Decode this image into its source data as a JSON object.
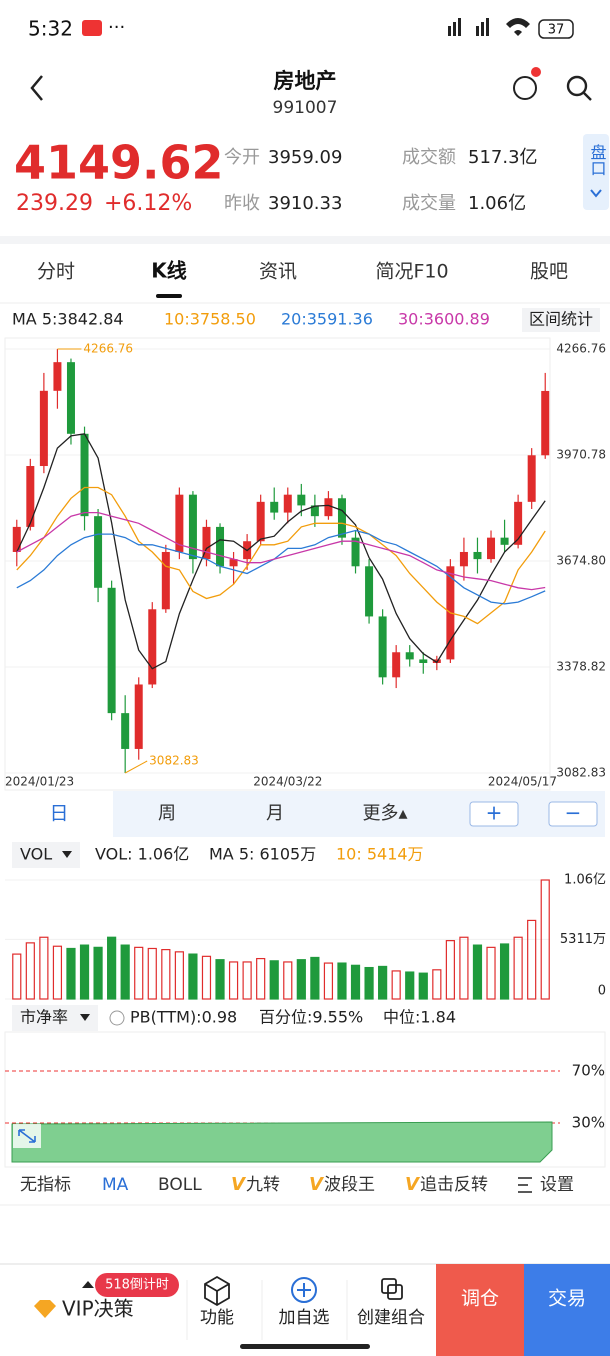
{
  "status_bar": {
    "time": "5:32",
    "battery": "37"
  },
  "header": {
    "title": "房地产",
    "code": "991007"
  },
  "quote": {
    "price": "4149.62",
    "change": "239.29",
    "change_pct": "+6.12%",
    "stats": [
      {
        "label": "今开",
        "value": "3959.09"
      },
      {
        "label": "昨收",
        "value": "3910.33"
      },
      {
        "label": "成交额",
        "value": "517.3亿"
      },
      {
        "label": "成交量",
        "value": "1.06亿"
      }
    ],
    "side_button": "盘口"
  },
  "tabs": [
    "分时",
    "K线",
    "资讯",
    "简况F10",
    "股吧"
  ],
  "ma_legend": [
    {
      "text": "MA 5:3842.84",
      "color": "#222222"
    },
    {
      "text": "10:3758.50",
      "color": "#f29d0c"
    },
    {
      "text": "20:3591.36",
      "color": "#2b7bd6"
    },
    {
      "text": "30:3600.89",
      "color": "#c838a8"
    }
  ],
  "range_button": "区间统计",
  "chart_data": [
    {
      "type": "candlestick",
      "categories": [
        "2024/01/23",
        null,
        null,
        null,
        null,
        null,
        null,
        null,
        null,
        null,
        null,
        null,
        null,
        null,
        null,
        null,
        null,
        null,
        null,
        null,
        "2024/03/22",
        null,
        null,
        null,
        null,
        null,
        null,
        null,
        null,
        null,
        null,
        null,
        null,
        null,
        null,
        null,
        null,
        null,
        null,
        "2024/05/17"
      ],
      "open": [
        3700,
        3770,
        3940,
        4150,
        4230,
        4030,
        3800,
        3600,
        3250,
        3150,
        3330,
        3540,
        3700,
        3860,
        3680,
        3770,
        3660,
        3680,
        3730,
        3840,
        3810,
        3860,
        3830,
        3800,
        3850,
        3740,
        3660,
        3520,
        3350,
        3420,
        3400,
        3390,
        3400,
        3660,
        3700,
        3680,
        3740,
        3720,
        3840,
        3970
      ],
      "high": [
        3790,
        3960,
        4200,
        4266.76,
        4240,
        4050,
        3820,
        3620,
        3300,
        3350,
        3560,
        3720,
        3880,
        3870,
        3790,
        3780,
        3700,
        3750,
        3860,
        3880,
        3880,
        3890,
        3860,
        3870,
        3860,
        3760,
        3680,
        3540,
        3440,
        3440,
        3420,
        3410,
        3680,
        3740,
        3740,
        3760,
        3790,
        3860,
        3990,
        4200
      ],
      "low": [
        3660,
        3760,
        3920,
        4100,
        4000,
        3760,
        3560,
        3230,
        3082.83,
        3120,
        3320,
        3530,
        3680,
        3640,
        3660,
        3640,
        3610,
        3650,
        3720,
        3790,
        3780,
        3800,
        3770,
        3790,
        3720,
        3640,
        3500,
        3330,
        3320,
        3380,
        3360,
        3370,
        3390,
        3620,
        3640,
        3670,
        3700,
        3710,
        3820,
        3960
      ],
      "close": [
        3770,
        3940,
        4150,
        4230,
        4030,
        3800,
        3600,
        3250,
        3150,
        3330,
        3540,
        3700,
        3860,
        3680,
        3770,
        3660,
        3680,
        3730,
        3840,
        3810,
        3860,
        3830,
        3800,
        3850,
        3740,
        3660,
        3520,
        3350,
        3420,
        3400,
        3390,
        3400,
        3660,
        3700,
        3680,
        3740,
        3720,
        3840,
        3970,
        4149.62
      ],
      "up_color": "#e02c2c",
      "down_color": "#1f9a3c",
      "series": [
        {
          "color": "#222222",
          "values": [
            3700,
            3780,
            3880,
            3990,
            4024,
            4030,
            3962,
            3782,
            3566,
            3426,
            3374,
            3394,
            3528,
            3622,
            3710,
            3734,
            3730,
            3704,
            3736,
            3744,
            3784,
            3814,
            3828,
            3830,
            3816,
            3776,
            3684,
            3624,
            3528,
            3458,
            3416,
            3392,
            3454,
            3510,
            3566,
            3636,
            3700,
            3736,
            3790,
            3842.84
          ]
        },
        {
          "color": "#f29d0c",
          "values": [
            3650,
            3690,
            3740,
            3800,
            3850,
            3880,
            3880,
            3860,
            3800,
            3730,
            3700,
            3660,
            3650,
            3590,
            3570,
            3580,
            3610,
            3660,
            3720,
            3720,
            3730,
            3770,
            3780,
            3780,
            3780,
            3770,
            3750,
            3720,
            3690,
            3640,
            3600,
            3560,
            3530,
            3520,
            3500,
            3530,
            3560,
            3650,
            3700,
            3758.5
          ]
        },
        {
          "color": "#2b7bd6",
          "values": [
            3600,
            3620,
            3650,
            3690,
            3720,
            3740,
            3750,
            3750,
            3740,
            3720,
            3720,
            3710,
            3700,
            3690,
            3680,
            3660,
            3650,
            3640,
            3660,
            3680,
            3710,
            3710,
            3720,
            3740,
            3750,
            3760,
            3750,
            3730,
            3720,
            3700,
            3680,
            3660,
            3630,
            3600,
            3580,
            3560,
            3555,
            3560,
            3575,
            3591.36
          ]
        },
        {
          "color": "#c838a8",
          "values": [
            3700,
            3720,
            3740,
            3770,
            3800,
            3810,
            3810,
            3800,
            3790,
            3780,
            3760,
            3740,
            3720,
            3710,
            3700,
            3690,
            3680,
            3670,
            3670,
            3680,
            3690,
            3700,
            3710,
            3720,
            3730,
            3730,
            3720,
            3710,
            3700,
            3690,
            3670,
            3650,
            3640,
            3630,
            3625,
            3620,
            3610,
            3600,
            3595,
            3600.89
          ]
        }
      ],
      "ylim": [
        3082.83,
        4266.76
      ],
      "yticks": [
        4266.76,
        3970.78,
        {
          "value": 3674.8,
          "label": "3674.80"
        },
        3378.82,
        3082.83
      ],
      "grid": true
    },
    {
      "type": "bar",
      "values": [
        4000,
        5000,
        5500,
        4700,
        4500,
        4800,
        4600,
        5500,
        4800,
        4600,
        4500,
        4400,
        4200,
        4000,
        3800,
        3500,
        3300,
        3300,
        3600,
        3400,
        3300,
        3500,
        3700,
        3200,
        3200,
        3000,
        2800,
        2900,
        2500,
        2400,
        2300,
        2600,
        5200,
        5500,
        4800,
        4600,
        4900,
        5500,
        7000,
        10600
      ],
      "ylim": [
        0,
        10600
      ],
      "yticks": [
        0,
        {
          "value": 5311,
          "label": "5311万"
        },
        {
          "value": 10600,
          "label": "1.06亿"
        }
      ]
    }
  ],
  "period_tabs": [
    "日",
    "周",
    "月",
    "更多▴"
  ],
  "zoom_buttons": [
    "+",
    "−"
  ],
  "vol_legend": {
    "selector": "VOL",
    "items": [
      {
        "text": "VOL: 1.06亿",
        "color": "#222222"
      },
      {
        "text": "MA 5: 6105万",
        "color": "#222222"
      },
      {
        "text": "10: 5414万",
        "color": "#f29d0c"
      }
    ]
  },
  "pb": {
    "selector": "市净率",
    "items": [
      "PB(TTM):0.98",
      "百分位:9.55%",
      "中位:1.84"
    ],
    "levels": [
      "70%",
      "30%"
    ]
  },
  "indicators": [
    {
      "label": "无指标"
    },
    {
      "label": "MA"
    },
    {
      "label": "BOLL"
    },
    {
      "prefix": "V",
      "label": "九转"
    },
    {
      "prefix": "V",
      "label": "波段王"
    },
    {
      "prefix": "V",
      "label": "追击反转"
    },
    {
      "label": "设置"
    }
  ],
  "bottom_bar": {
    "badge": "518倒计时",
    "vip": "VIP决策",
    "items": [
      "功能",
      "加自选",
      "创建组合"
    ],
    "buttons": [
      "调仓",
      "交易"
    ]
  }
}
